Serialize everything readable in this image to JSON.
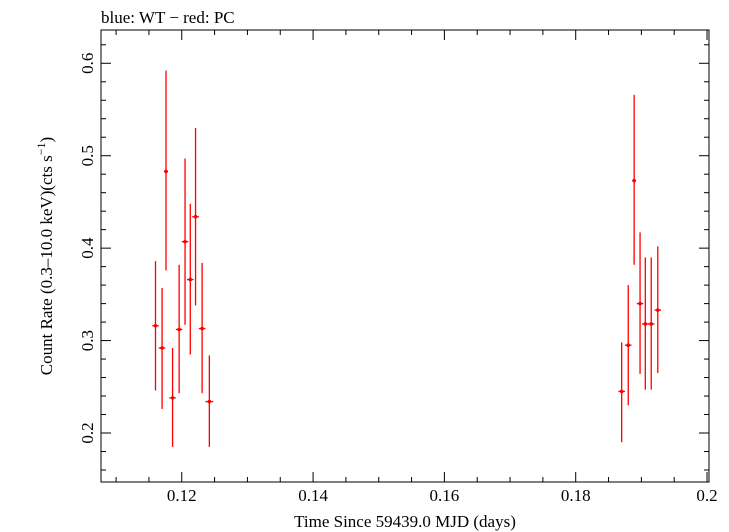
{
  "chart_data": {
    "type": "scatter",
    "title": "blue: WT − red: PC",
    "xlabel": "Time Since 59439.0 MJD (days)",
    "ylabel_main": "Count Rate (0.3–10.0 keV)(cts s",
    "ylabel_sup": "−1",
    "ylabel_close": ")",
    "xlim": [
      0.1077,
      0.2003
    ],
    "ylim": [
      0.147,
      0.636
    ],
    "x_ticks": [
      0.12,
      0.14,
      0.16,
      0.18,
      0.2
    ],
    "x_tick_labels": [
      "0.12",
      "0.14",
      "0.16",
      "0.18",
      "0.2"
    ],
    "y_ticks": [
      0.2,
      0.3,
      0.4,
      0.5,
      0.6
    ],
    "y_tick_labels": [
      "0.2",
      "0.3",
      "0.4",
      "0.5",
      "0.6"
    ],
    "grid": false,
    "series": [
      {
        "color": "#ff0000",
        "points": [
          {
            "x": 0.116,
            "y": 0.316,
            "yerr_lo": 0.246,
            "yerr_hi": 0.386,
            "xerr": 0.0005
          },
          {
            "x": 0.117,
            "y": 0.292,
            "yerr_lo": 0.226,
            "yerr_hi": 0.357,
            "xerr": 0.0005
          },
          {
            "x": 0.1176,
            "y": 0.483,
            "yerr_lo": 0.376,
            "yerr_hi": 0.592,
            "xerr": 0.0003
          },
          {
            "x": 0.1186,
            "y": 0.238,
            "yerr_lo": 0.185,
            "yerr_hi": 0.292,
            "xerr": 0.0005
          },
          {
            "x": 0.1196,
            "y": 0.312,
            "yerr_lo": 0.243,
            "yerr_hi": 0.382,
            "xerr": 0.0005
          },
          {
            "x": 0.1205,
            "y": 0.407,
            "yerr_lo": 0.317,
            "yerr_hi": 0.497,
            "xerr": 0.0005
          },
          {
            "x": 0.1213,
            "y": 0.366,
            "yerr_lo": 0.285,
            "yerr_hi": 0.448,
            "xerr": 0.0005
          },
          {
            "x": 0.1221,
            "y": 0.434,
            "yerr_lo": 0.338,
            "yerr_hi": 0.53,
            "xerr": 0.0005
          },
          {
            "x": 0.1231,
            "y": 0.313,
            "yerr_lo": 0.243,
            "yerr_hi": 0.384,
            "xerr": 0.0005
          },
          {
            "x": 0.1242,
            "y": 0.234,
            "yerr_lo": 0.185,
            "yerr_hi": 0.284,
            "xerr": 0.0006
          },
          {
            "x": 0.187,
            "y": 0.245,
            "yerr_lo": 0.19,
            "yerr_hi": 0.298,
            "xerr": 0.0005
          },
          {
            "x": 0.188,
            "y": 0.295,
            "yerr_lo": 0.23,
            "yerr_hi": 0.36,
            "xerr": 0.0005
          },
          {
            "x": 0.1889,
            "y": 0.473,
            "yerr_lo": 0.382,
            "yerr_hi": 0.566,
            "xerr": 0.0003
          },
          {
            "x": 0.1898,
            "y": 0.34,
            "yerr_lo": 0.264,
            "yerr_hi": 0.417,
            "xerr": 0.0005
          },
          {
            "x": 0.1906,
            "y": 0.318,
            "yerr_lo": 0.247,
            "yerr_hi": 0.39,
            "xerr": 0.0005
          },
          {
            "x": 0.1915,
            "y": 0.318,
            "yerr_lo": 0.247,
            "yerr_hi": 0.39,
            "xerr": 0.0005
          },
          {
            "x": 0.1925,
            "y": 0.333,
            "yerr_lo": 0.265,
            "yerr_hi": 0.402,
            "xerr": 0.0005
          }
        ]
      }
    ]
  }
}
